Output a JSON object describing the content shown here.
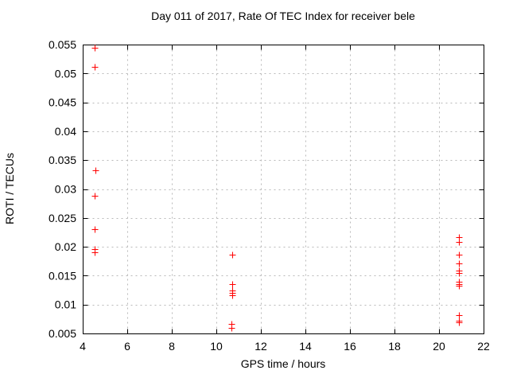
{
  "chart_data": {
    "type": "scatter",
    "title": "Day 011 of 2017, Rate Of TEC Index for receiver bele",
    "xlabel": "GPS time / hours",
    "ylabel": "ROTI / TECUs",
    "xlim": [
      4,
      22
    ],
    "ylim": [
      0.005,
      0.055
    ],
    "x_tick_values": [
      4,
      6,
      8,
      10,
      12,
      14,
      16,
      18,
      20,
      22
    ],
    "x_tick_labels": [
      "4",
      "6",
      "8",
      "10",
      "12",
      "14",
      "16",
      "18",
      "20",
      "22"
    ],
    "y_tick_values": [
      0.005,
      0.01,
      0.015,
      0.02,
      0.025,
      0.03,
      0.035,
      0.04,
      0.045,
      0.05,
      0.055
    ],
    "y_tick_labels": [
      "0.005",
      "0.01",
      "0.015",
      "0.02",
      "0.025",
      "0.03",
      "0.035",
      "0.04",
      "0.045",
      "0.05",
      "0.055"
    ],
    "grid": true,
    "legend_position": "none",
    "marker": "plus",
    "colors": {
      "marker": "#ff0000",
      "grid": "#b9b9b9",
      "axis": "#000000",
      "background": "#ffffff"
    },
    "series": [
      {
        "name": "ROTI",
        "points": [
          [
            4.55,
            0.0545
          ],
          [
            4.55,
            0.0512
          ],
          [
            4.57,
            0.0333
          ],
          [
            4.55,
            0.0288
          ],
          [
            4.55,
            0.0231
          ],
          [
            4.55,
            0.0196
          ],
          [
            4.55,
            0.019
          ],
          [
            10.7,
            0.0186
          ],
          [
            10.7,
            0.0136
          ],
          [
            10.7,
            0.0124
          ],
          [
            10.7,
            0.012
          ],
          [
            10.7,
            0.0116
          ],
          [
            10.68,
            0.0066
          ],
          [
            10.68,
            0.006
          ],
          [
            20.9,
            0.0216
          ],
          [
            20.9,
            0.0209
          ],
          [
            20.9,
            0.0187
          ],
          [
            20.9,
            0.0171
          ],
          [
            20.9,
            0.0159
          ],
          [
            20.9,
            0.0155
          ],
          [
            20.9,
            0.0139
          ],
          [
            20.9,
            0.0136
          ],
          [
            20.9,
            0.0133
          ],
          [
            20.9,
            0.0082
          ],
          [
            20.9,
            0.0072
          ],
          [
            20.9,
            0.0069
          ]
        ]
      }
    ]
  }
}
